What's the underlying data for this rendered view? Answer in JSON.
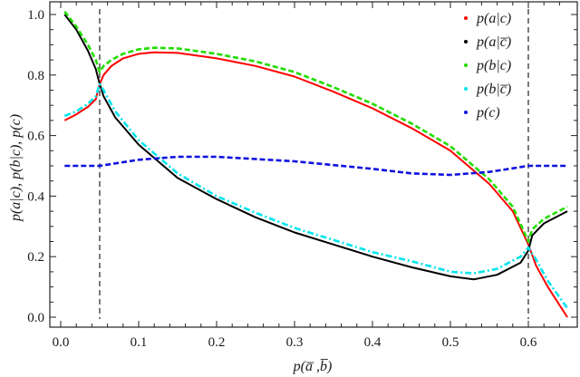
{
  "chart_data": {
    "type": "line",
    "title": "",
    "xlabel": "p(a̅ ,b̅)",
    "ylabel": "p(a|c), p(b|c), p(c)",
    "xlim": [
      0.0,
      0.65
    ],
    "ylim": [
      0.0,
      1.0
    ],
    "x_ticks": [
      "0.0",
      "0.1",
      "0.2",
      "0.3",
      "0.4",
      "0.5",
      "0.6"
    ],
    "y_ticks": [
      "0.0",
      "0.2",
      "0.4",
      "0.6",
      "0.8",
      "1.0"
    ],
    "grid": false,
    "legend_position": "upper right",
    "vertical_reference_lines": [
      0.05,
      0.6
    ],
    "series": [
      {
        "name": "p(a|c)",
        "color": "#ff0000",
        "style": "solid",
        "points": [
          [
            0.005,
            0.65
          ],
          [
            0.02,
            0.67
          ],
          [
            0.035,
            0.695
          ],
          [
            0.045,
            0.72
          ],
          [
            0.05,
            0.77
          ],
          [
            0.055,
            0.8
          ],
          [
            0.065,
            0.83
          ],
          [
            0.08,
            0.855
          ],
          [
            0.1,
            0.87
          ],
          [
            0.12,
            0.875
          ],
          [
            0.15,
            0.873
          ],
          [
            0.2,
            0.855
          ],
          [
            0.25,
            0.83
          ],
          [
            0.3,
            0.795
          ],
          [
            0.35,
            0.745
          ],
          [
            0.4,
            0.69
          ],
          [
            0.45,
            0.625
          ],
          [
            0.5,
            0.55
          ],
          [
            0.55,
            0.44
          ],
          [
            0.58,
            0.35
          ],
          [
            0.6,
            0.24
          ],
          [
            0.61,
            0.17
          ],
          [
            0.625,
            0.1
          ],
          [
            0.65,
            0.0
          ]
        ]
      },
      {
        "name": "p(a|c̅)",
        "color": "#000000",
        "style": "solid",
        "points": [
          [
            0.005,
            1.0
          ],
          [
            0.02,
            0.95
          ],
          [
            0.035,
            0.88
          ],
          [
            0.045,
            0.82
          ],
          [
            0.05,
            0.77
          ],
          [
            0.055,
            0.73
          ],
          [
            0.07,
            0.66
          ],
          [
            0.1,
            0.57
          ],
          [
            0.15,
            0.46
          ],
          [
            0.2,
            0.39
          ],
          [
            0.25,
            0.33
          ],
          [
            0.3,
            0.28
          ],
          [
            0.35,
            0.24
          ],
          [
            0.4,
            0.2
          ],
          [
            0.45,
            0.165
          ],
          [
            0.5,
            0.135
          ],
          [
            0.53,
            0.125
          ],
          [
            0.56,
            0.14
          ],
          [
            0.59,
            0.18
          ],
          [
            0.6,
            0.22
          ],
          [
            0.605,
            0.27
          ],
          [
            0.62,
            0.31
          ],
          [
            0.65,
            0.35
          ]
        ]
      },
      {
        "name": "p(b|c)",
        "color": "#22dd00",
        "style": "dashed",
        "points": [
          [
            0.005,
            1.01
          ],
          [
            0.02,
            0.96
          ],
          [
            0.035,
            0.9
          ],
          [
            0.045,
            0.85
          ],
          [
            0.05,
            0.81
          ],
          [
            0.055,
            0.83
          ],
          [
            0.065,
            0.85
          ],
          [
            0.08,
            0.87
          ],
          [
            0.1,
            0.885
          ],
          [
            0.12,
            0.89
          ],
          [
            0.15,
            0.888
          ],
          [
            0.2,
            0.87
          ],
          [
            0.25,
            0.845
          ],
          [
            0.3,
            0.81
          ],
          [
            0.35,
            0.76
          ],
          [
            0.4,
            0.705
          ],
          [
            0.45,
            0.64
          ],
          [
            0.5,
            0.565
          ],
          [
            0.55,
            0.455
          ],
          [
            0.58,
            0.365
          ],
          [
            0.6,
            0.25
          ],
          [
            0.605,
            0.29
          ],
          [
            0.62,
            0.325
          ],
          [
            0.65,
            0.365
          ]
        ]
      },
      {
        "name": "p(b|c̅)",
        "color": "#00e5ee",
        "style": "dashdot",
        "points": [
          [
            0.005,
            0.665
          ],
          [
            0.02,
            0.68
          ],
          [
            0.035,
            0.705
          ],
          [
            0.045,
            0.73
          ],
          [
            0.05,
            0.77
          ],
          [
            0.055,
            0.75
          ],
          [
            0.07,
            0.68
          ],
          [
            0.1,
            0.585
          ],
          [
            0.15,
            0.475
          ],
          [
            0.2,
            0.4
          ],
          [
            0.25,
            0.345
          ],
          [
            0.3,
            0.295
          ],
          [
            0.35,
            0.255
          ],
          [
            0.4,
            0.215
          ],
          [
            0.45,
            0.185
          ],
          [
            0.5,
            0.15
          ],
          [
            0.53,
            0.145
          ],
          [
            0.56,
            0.16
          ],
          [
            0.59,
            0.2
          ],
          [
            0.6,
            0.23
          ],
          [
            0.61,
            0.19
          ],
          [
            0.625,
            0.12
          ],
          [
            0.65,
            0.03
          ]
        ]
      },
      {
        "name": "p(c)",
        "color": "#1010e0",
        "style": "dashed",
        "points": [
          [
            0.005,
            0.5
          ],
          [
            0.05,
            0.5
          ],
          [
            0.1,
            0.52
          ],
          [
            0.15,
            0.53
          ],
          [
            0.2,
            0.53
          ],
          [
            0.3,
            0.515
          ],
          [
            0.4,
            0.49
          ],
          [
            0.45,
            0.475
          ],
          [
            0.5,
            0.47
          ],
          [
            0.55,
            0.48
          ],
          [
            0.6,
            0.5
          ],
          [
            0.65,
            0.5
          ]
        ]
      }
    ]
  }
}
